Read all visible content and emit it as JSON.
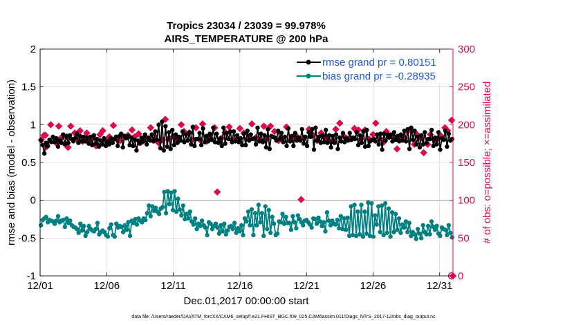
{
  "chart_data": {
    "type": "line",
    "title": "Tropics 23034 / 23039 = 99.978%",
    "subtitle": "AIRS_TEMPERATURE @ 200 hPa",
    "xlabel": "Dec.01,2017 00:00:00 start",
    "ylabel": "rmse and bias (model - observation)",
    "y2label": "# of obs: o=possible; ×=assimilated",
    "footer": "data file: /Users/raeder/DAI/ATM_forcXX/CAM6_setup/f.e21.FHIST_BGC.f09_025.CAM6assim.011/Diags_NTrS_2017-12/obs_diag_output.nc",
    "xlim": [
      0,
      31
    ],
    "ylim": [
      -1,
      2
    ],
    "y2lim": [
      0,
      300
    ],
    "xticks": [
      0,
      5,
      10,
      15,
      20,
      25,
      30
    ],
    "xtick_labels": [
      "12/01",
      "12/06",
      "12/11",
      "12/16",
      "12/21",
      "12/26",
      "12/31"
    ],
    "yticks": [
      -1,
      -0.5,
      0,
      0.5,
      1,
      1.5,
      2
    ],
    "ytick_labels": [
      "-1",
      "-0.5",
      "0",
      "0.5",
      "1",
      "1.5",
      "2"
    ],
    "y2ticks": [
      0,
      50,
      100,
      150,
      200,
      250,
      300
    ],
    "y2tick_labels": [
      "0",
      "50",
      "100",
      "150",
      "200",
      "250",
      "300"
    ],
    "series": [
      {
        "name": "rmse grand pr = 0.80151",
        "legend": "rmse grand pr = 0.80151",
        "color": "#000000",
        "axis": "left",
        "marker": "circle",
        "values": [
          0.79,
          0.73,
          0.62,
          0.76,
          0.72,
          0.8,
          0.77,
          0.84,
          0.77,
          0.82,
          0.71,
          0.79,
          0.76,
          0.87,
          0.74,
          0.85,
          0.76,
          0.86,
          0.81,
          0.78,
          0.82,
          0.88,
          0.76,
          0.85,
          0.78,
          0.84,
          0.78,
          0.83,
          0.75,
          0.84,
          0.73,
          0.86,
          0.75,
          0.81,
          0.71,
          0.79,
          0.74,
          0.82,
          0.72,
          0.78,
          0.74,
          0.82,
          0.76,
          0.81,
          0.84,
          0.72,
          0.85,
          0.88,
          0.7,
          0.85,
          0.82,
          0.85,
          0.73,
          0.83,
          0.72,
          0.8,
          0.66,
          0.79,
          0.75,
          0.83,
          0.78,
          0.87,
          0.74,
          0.83,
          0.79,
          0.87,
          0.78,
          0.91,
          0.8,
          1.0,
          0.69,
          1.04,
          0.66,
          0.98,
          0.71,
          0.9,
          0.68,
          0.93,
          0.73,
          0.87,
          0.76,
          0.84,
          0.79,
          0.91,
          0.77,
          0.87,
          0.79,
          0.9,
          0.74,
          0.97,
          0.72,
          0.81,
          0.81,
          0.89,
          0.73,
          0.95,
          0.77,
          0.85,
          0.78,
          0.88,
          0.8,
          0.96,
          0.77,
          0.88,
          0.76,
          0.82,
          0.72,
          0.96,
          0.75,
          0.89,
          0.81,
          0.91,
          0.77,
          0.91,
          0.78,
          0.86,
          0.77,
          0.82,
          0.73,
          0.88,
          0.73,
          0.92,
          0.79,
          0.87,
          0.81,
          0.82,
          0.74,
          0.96,
          0.78,
          0.88,
          0.77,
          0.86,
          0.7,
          0.94,
          0.68,
          0.85,
          0.84,
          0.83,
          0.79,
          0.92,
          0.81,
          0.89,
          0.77,
          0.84,
          0.72,
          0.95,
          0.78,
          0.85,
          0.72,
          0.89,
          0.79,
          0.83,
          0.79,
          0.94,
          0.75,
          0.84,
          0.72,
          0.9,
          0.84,
          0.94,
          0.67,
          0.96,
          0.79,
          0.84,
          0.76,
          0.86,
          0.77,
          0.93,
          0.76,
          0.86,
          0.7,
          0.85,
          0.76,
          0.87,
          0.68,
          0.83,
          0.78,
          0.89,
          0.77,
          0.82,
          0.79,
          0.89,
          0.8,
          0.83,
          0.81,
          0.9,
          0.73,
          0.86,
          0.76,
          0.91,
          0.71,
          0.93,
          0.72,
          0.78,
          0.8,
          0.81,
          0.78,
          0.87,
          0.74,
          0.88,
          0.67,
          0.88,
          0.79,
          0.87,
          0.83,
          0.87,
          0.78,
          0.9,
          0.8,
          0.85,
          0.78,
          0.87,
          0.79,
          0.92,
          0.78,
          0.94,
          0.68,
          0.96,
          0.8,
          0.92,
          0.74,
          0.84,
          0.7,
          0.86,
          0.74,
          0.9,
          0.76,
          0.81,
          0.81,
          0.93,
          0.72,
          0.83,
          0.74,
          0.9,
          0.67,
          0.82,
          0.8,
          0.92,
          0.71,
          0.88,
          0.79,
          0.81
        ]
      },
      {
        "name": "bias grand pr = -0.28935",
        "legend": "bias grand pr = -0.28935",
        "color": "#008080",
        "axis": "left",
        "marker": "circle",
        "values": [
          -0.33,
          -0.26,
          -0.24,
          -0.22,
          -0.29,
          -0.26,
          -0.27,
          -0.28,
          -0.31,
          -0.27,
          -0.21,
          -0.29,
          -0.27,
          -0.26,
          -0.35,
          -0.24,
          -0.3,
          -0.27,
          -0.33,
          -0.35,
          -0.36,
          -0.38,
          -0.43,
          -0.31,
          -0.4,
          -0.34,
          -0.47,
          -0.42,
          -0.34,
          -0.38,
          -0.4,
          -0.41,
          -0.38,
          -0.3,
          -0.45,
          -0.42,
          -0.4,
          -0.42,
          -0.46,
          -0.48,
          -0.37,
          -0.32,
          -0.46,
          -0.48,
          -0.31,
          -0.36,
          -0.34,
          -0.35,
          -0.42,
          -0.33,
          -0.39,
          -0.29,
          -0.47,
          -0.27,
          -0.3,
          -0.25,
          -0.32,
          -0.24,
          -0.27,
          -0.29,
          -0.24,
          -0.26,
          -0.17,
          -0.07,
          -0.21,
          -0.08,
          -0.14,
          -0.1,
          -0.15,
          -0.18,
          -0.11,
          -0.09,
          0.11,
          -0.17,
          0.12,
          -0.05,
          0.1,
          -0.13,
          0.12,
          -0.15,
          0.02,
          -0.12,
          -0.2,
          -0.07,
          -0.25,
          -0.18,
          -0.24,
          -0.15,
          -0.28,
          -0.32,
          -0.24,
          -0.38,
          -0.31,
          -0.34,
          -0.27,
          -0.33,
          -0.36,
          -0.46,
          -0.29,
          -0.31,
          -0.38,
          -0.34,
          -0.31,
          -0.36,
          -0.44,
          -0.33,
          -0.41,
          -0.31,
          -0.45,
          -0.4,
          -0.35,
          -0.34,
          -0.38,
          -0.3,
          -0.43,
          -0.37,
          -0.41,
          -0.33,
          -0.46,
          -0.24,
          -0.28,
          -0.15,
          -0.33,
          -0.12,
          -0.46,
          -0.17,
          -0.33,
          -0.06,
          -0.29,
          -0.17,
          -0.47,
          -0.08,
          -0.38,
          -0.13,
          -0.43,
          -0.22,
          -0.31,
          -0.46,
          -0.44,
          -0.28,
          -0.29,
          -0.18,
          -0.31,
          -0.22,
          -0.3,
          -0.3,
          -0.39,
          -0.21,
          -0.29,
          -0.37,
          -0.2,
          -0.25,
          -0.29,
          -0.33,
          -0.27,
          -0.26,
          -0.29,
          -0.32,
          -0.36,
          -0.24,
          -0.25,
          -0.31,
          -0.23,
          -0.28,
          -0.34,
          -0.29,
          -0.41,
          -0.16,
          -0.27,
          -0.33,
          -0.27,
          -0.31,
          -0.32,
          -0.26,
          -0.37,
          -0.21,
          -0.38,
          -0.24,
          -0.39,
          -0.23,
          -0.47,
          -0.08,
          -0.46,
          -0.06,
          -0.47,
          -0.15,
          -0.45,
          -0.06,
          -0.48,
          -0.15,
          -0.44,
          -0.03,
          -0.47,
          -0.04,
          -0.48,
          -0.2,
          -0.32,
          -0.08,
          -0.42,
          -0.07,
          -0.46,
          -0.04,
          -0.43,
          -0.11,
          -0.48,
          -0.16,
          -0.42,
          -0.18,
          -0.39,
          -0.24,
          -0.43,
          -0.32,
          -0.36,
          -0.28,
          -0.42,
          -0.3,
          -0.47,
          -0.42,
          -0.45,
          -0.51,
          -0.38,
          -0.44,
          -0.5,
          -0.33,
          -0.42,
          -0.45,
          -0.34,
          -0.45,
          -0.28,
          -0.35,
          -0.39,
          -0.34,
          -0.44,
          -0.47,
          -0.36,
          -0.38,
          -0.39,
          -0.46,
          -0.33,
          -0.43,
          -0.49
        ]
      },
      {
        "name": "obs assimilated (×)",
        "color": "#dc0a50",
        "axis": "right",
        "marker": "diamond",
        "points": [
          [
            0.1,
            180
          ],
          [
            0.3,
            186
          ],
          [
            0.4,
            186
          ],
          [
            0.5,
            171
          ],
          [
            0.8,
            200
          ],
          [
            1.2,
            176
          ],
          [
            1.4,
            198
          ],
          [
            1.6,
            183
          ],
          [
            2.0,
            184
          ],
          [
            2.1,
            170
          ],
          [
            2.3,
            198
          ],
          [
            2.6,
            189
          ],
          [
            2.8,
            180
          ],
          [
            3.0,
            192
          ],
          [
            3.2,
            178
          ],
          [
            3.5,
            189
          ],
          [
            3.8,
            181
          ],
          [
            4.0,
            183
          ],
          [
            4.2,
            172
          ],
          [
            4.5,
            187
          ],
          [
            4.7,
            192
          ],
          [
            5.0,
            179
          ],
          [
            5.2,
            184
          ],
          [
            5.5,
            199
          ],
          [
            5.8,
            180
          ],
          [
            6.0,
            179
          ],
          [
            6.3,
            184
          ],
          [
            6.6,
            186
          ],
          [
            6.9,
            193
          ],
          [
            7.1,
            184
          ],
          [
            7.4,
            188
          ],
          [
            7.7,
            178
          ],
          [
            7.9,
            183
          ],
          [
            8.3,
            196
          ],
          [
            8.6,
            181
          ],
          [
            8.9,
            176
          ],
          [
            9.2,
            180
          ],
          [
            9.4,
            207
          ],
          [
            9.7,
            182
          ],
          [
            10.0,
            184
          ],
          [
            10.2,
            181
          ],
          [
            10.6,
            200
          ],
          [
            10.8,
            191
          ],
          [
            11.2,
            189
          ],
          [
            11.4,
            180
          ],
          [
            11.7,
            196
          ],
          [
            12.0,
            180
          ],
          [
            12.2,
            201
          ],
          [
            12.5,
            178
          ],
          [
            12.8,
            182
          ],
          [
            13.1,
            196
          ],
          [
            13.3,
            111
          ],
          [
            13.6,
            182
          ],
          [
            13.9,
            190
          ],
          [
            14.2,
            197
          ],
          [
            14.5,
            179
          ],
          [
            14.8,
            181
          ],
          [
            15.0,
            195
          ],
          [
            15.3,
            189
          ],
          [
            15.6,
            182
          ],
          [
            15.9,
            201
          ],
          [
            16.2,
            183
          ],
          [
            16.5,
            180
          ],
          [
            16.8,
            198
          ],
          [
            17.0,
            181
          ],
          [
            17.3,
            198
          ],
          [
            17.6,
            191
          ],
          [
            17.9,
            179
          ],
          [
            18.1,
            183
          ],
          [
            18.5,
            197
          ],
          [
            18.8,
            180
          ],
          [
            19.0,
            183
          ],
          [
            19.3,
            184
          ],
          [
            19.6,
            101
          ],
          [
            19.8,
            182
          ],
          [
            20.2,
            194
          ],
          [
            20.5,
            186
          ],
          [
            20.8,
            179
          ],
          [
            21.1,
            189
          ],
          [
            21.4,
            182
          ],
          [
            21.6,
            180
          ],
          [
            22.0,
            179
          ],
          [
            22.2,
            194
          ],
          [
            22.5,
            202
          ],
          [
            22.8,
            185
          ],
          [
            23.0,
            182
          ],
          [
            23.3,
            182
          ],
          [
            23.6,
            195
          ],
          [
            23.9,
            193
          ],
          [
            24.1,
            181
          ],
          [
            24.4,
            193
          ],
          [
            24.7,
            181
          ],
          [
            25.0,
            187
          ],
          [
            25.2,
            202
          ],
          [
            25.5,
            182
          ],
          [
            25.8,
            177
          ],
          [
            26.0,
            191
          ],
          [
            26.2,
            185
          ],
          [
            26.5,
            183
          ],
          [
            26.8,
            168
          ],
          [
            27.1,
            183
          ],
          [
            27.4,
            182
          ],
          [
            27.6,
            191
          ],
          [
            27.9,
            192
          ],
          [
            28.1,
            174
          ],
          [
            28.3,
            187
          ],
          [
            28.6,
            182
          ],
          [
            28.8,
            163
          ],
          [
            29.1,
            174
          ],
          [
            29.3,
            187
          ],
          [
            29.6,
            180
          ],
          [
            29.9,
            182
          ],
          [
            30.1,
            185
          ],
          [
            30.4,
            196
          ],
          [
            30.6,
            192
          ],
          [
            30.9,
            206
          ],
          [
            31.0,
            0
          ]
        ]
      },
      {
        "name": "obs possible (o)",
        "color": "#dc0a50",
        "axis": "right",
        "marker": "circle-open",
        "points": [
          [
            30.9,
            0
          ]
        ]
      }
    ],
    "reference_line": 0,
    "grid": true,
    "legend_position": "top-right"
  }
}
